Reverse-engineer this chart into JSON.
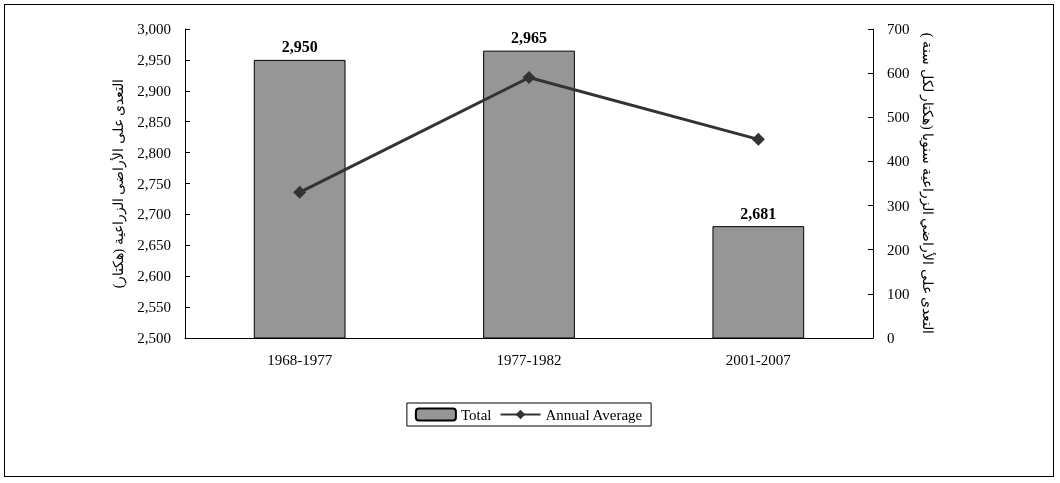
{
  "chart_data": {
    "type": "bar",
    "categories": [
      "1968-1977",
      "1977-1982",
      "2001-2007"
    ],
    "ylabel": "التعدى على الأراضى الزراعية (هكتار)",
    "y2label": "التعدى على الأراضي الزراعية سنويا (هكتار لكل سنة )",
    "series": [
      {
        "name": "Total",
        "color": "#969696",
        "values": [
          2950,
          2965,
          2681
        ],
        "value_labels": [
          "2,950",
          "2,965",
          "2,681"
        ]
      },
      {
        "name": "Annual Average",
        "type": "line",
        "axis": "y2",
        "color": "#333333",
        "values": [
          330,
          590,
          450
        ]
      }
    ],
    "ylim": [
      2500,
      3000
    ],
    "yticks": [
      {
        "value": 2500,
        "label": "2,500"
      },
      {
        "value": 2550,
        "label": "2,550"
      },
      {
        "value": 2600,
        "label": "2,600"
      },
      {
        "value": 2650,
        "label": "2,650"
      },
      {
        "value": 2700,
        "label": "2,700"
      },
      {
        "value": 2750,
        "label": "2,750"
      },
      {
        "value": 2800,
        "label": "2,800"
      },
      {
        "value": 2850,
        "label": "2,850"
      },
      {
        "value": 2900,
        "label": "2,900"
      },
      {
        "value": 2950,
        "label": "2,950"
      },
      {
        "value": 3000,
        "label": "3,000"
      }
    ],
    "y2lim": [
      0,
      700
    ],
    "y2ticks": [
      0,
      100,
      200,
      300,
      400,
      500,
      600,
      700
    ],
    "marker": "diamond",
    "grid": false,
    "legend": "bottom"
  }
}
